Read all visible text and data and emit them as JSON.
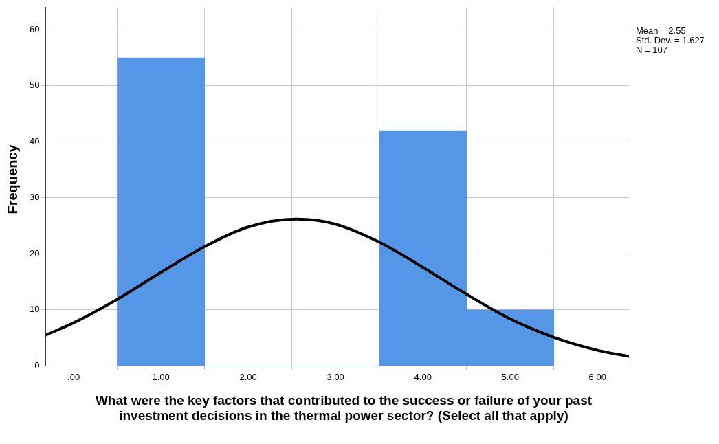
{
  "chart_data": {
    "type": "histogram",
    "xlabel": "What were the key factors that contributed to the success or failure of your past investment decisions in the thermal power sector? (Select all that apply)",
    "ylabel": "Frequency",
    "bins": [
      0.5,
      1.5,
      2.5,
      3.5,
      4.5,
      5.5
    ],
    "values": [
      55,
      0,
      0,
      42,
      10
    ],
    "color": "#5596e6",
    "series": [
      {
        "type": "line",
        "color": "#000000",
        "x": [
          -0.32,
          0,
          0.5,
          1,
          1.5,
          2,
          2.55,
          3,
          3.5,
          4,
          4.5,
          5,
          5.5,
          6,
          6.36
        ],
        "values": [
          5.5,
          7.7,
          11.9,
          16.7,
          21.3,
          24.8,
          26.2,
          25.3,
          22.1,
          17.6,
          12.8,
          8.4,
          5.1,
          2.8,
          1.7
        ]
      }
    ],
    "xlim": [
      -0.32,
      6.36
    ],
    "ylim": [
      0,
      64
    ],
    "xticks": [
      {
        "value": 0,
        "label": ".00"
      },
      {
        "value": 1,
        "label": "1.00"
      },
      {
        "value": 2,
        "label": "2.00"
      },
      {
        "value": 3,
        "label": "3.00"
      },
      {
        "value": 4,
        "label": "4.00"
      },
      {
        "value": 5,
        "label": "5.00"
      },
      {
        "value": 6,
        "label": "6.00"
      }
    ],
    "yticks": [
      0,
      10,
      20,
      30,
      40,
      50,
      60
    ],
    "grid": true,
    "legend": false,
    "marker": "none",
    "line_style": "solid",
    "annotations": [
      "Mean = 2.55",
      "Std. Dev. = 1.627",
      "N = 107"
    ]
  }
}
